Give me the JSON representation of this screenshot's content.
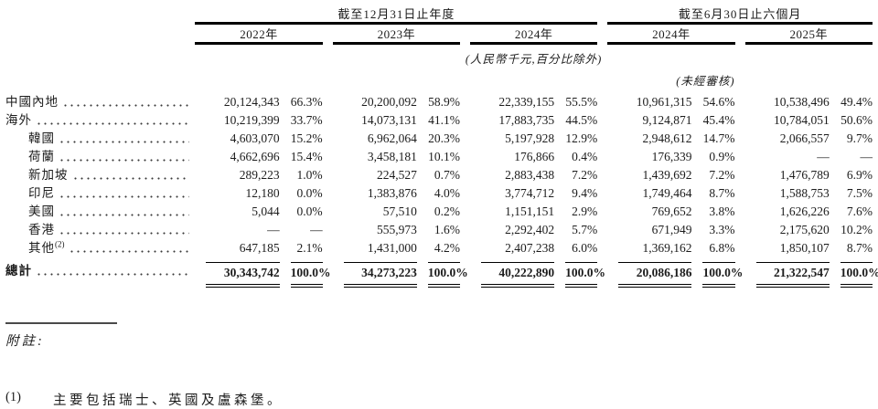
{
  "table": {
    "group_headers": [
      {
        "label": "截至12月31日止年度"
      },
      {
        "label": "截至6月30日止六個月"
      }
    ],
    "year_headers": [
      "2022年",
      "2023年",
      "2024年",
      "2024年",
      "2025年"
    ],
    "unit_note": "(人民幣千元,百分比除外)",
    "unaudited_note": "(未經審核)",
    "rows": [
      {
        "label": "中國內地",
        "indent": false,
        "values": [
          "20,124,343",
          "66.3%",
          "20,200,092",
          "58.9%",
          "22,339,155",
          "55.5%",
          "10,961,315",
          "54.6%",
          "10,538,496",
          "49.4%"
        ]
      },
      {
        "label": "海外",
        "indent": false,
        "values": [
          "10,219,399",
          "33.7%",
          "14,073,131",
          "41.1%",
          "17,883,735",
          "44.5%",
          "9,124,871",
          "45.4%",
          "10,784,051",
          "50.6%"
        ]
      },
      {
        "label": "韓國",
        "indent": true,
        "values": [
          "4,603,070",
          "15.2%",
          "6,962,064",
          "20.3%",
          "5,197,928",
          "12.9%",
          "2,948,612",
          "14.7%",
          "2,066,557",
          "9.7%"
        ]
      },
      {
        "label": "荷蘭",
        "indent": true,
        "values": [
          "4,662,696",
          "15.4%",
          "3,458,181",
          "10.1%",
          "176,866",
          "0.4%",
          "176,339",
          "0.9%",
          "—",
          "—"
        ]
      },
      {
        "label": "新加坡",
        "indent": true,
        "values": [
          "289,223",
          "1.0%",
          "224,527",
          "0.7%",
          "2,883,438",
          "7.2%",
          "1,439,692",
          "7.2%",
          "1,476,789",
          "6.9%"
        ]
      },
      {
        "label": "印尼",
        "indent": true,
        "values": [
          "12,180",
          "0.0%",
          "1,383,876",
          "4.0%",
          "3,774,712",
          "9.4%",
          "1,749,464",
          "8.7%",
          "1,588,753",
          "7.5%"
        ]
      },
      {
        "label": "美國",
        "indent": true,
        "values": [
          "5,044",
          "0.0%",
          "57,510",
          "0.2%",
          "1,151,151",
          "2.9%",
          "769,652",
          "3.8%",
          "1,626,226",
          "7.6%"
        ]
      },
      {
        "label": "香港",
        "indent": true,
        "values": [
          "—",
          "—",
          "555,973",
          "1.6%",
          "2,292,402",
          "5.7%",
          "671,949",
          "3.3%",
          "2,175,620",
          "10.2%"
        ]
      },
      {
        "label": "其他",
        "sup": "(2)",
        "indent": true,
        "values": [
          "647,185",
          "2.1%",
          "1,431,000",
          "4.2%",
          "2,407,238",
          "6.0%",
          "1,369,162",
          "6.8%",
          "1,850,107",
          "8.7%"
        ]
      }
    ],
    "total_row": {
      "label": "總計",
      "values": [
        "30,343,742",
        "100.0%",
        "34,273,223",
        "100.0%",
        "40,222,890",
        "100.0%",
        "20,086,186",
        "100.0%",
        "21,322,547",
        "100.0%"
      ]
    }
  },
  "footnotes": {
    "heading": "附註:",
    "items": [
      {
        "marker": "(1)",
        "text": "主要包括瑞士、英國及盧森堡。"
      }
    ]
  }
}
